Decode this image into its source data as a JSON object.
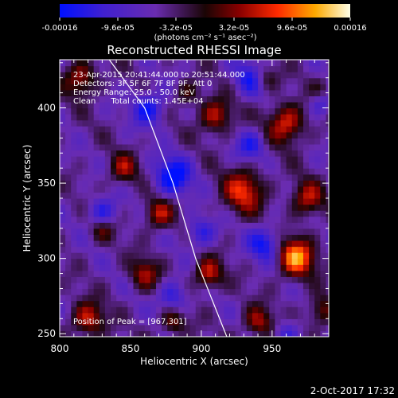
{
  "chart_data": {
    "type": "heatmap",
    "title": "Reconstructed RHESSI Image",
    "xlabel": "Heliocentric X (arcsec)",
    "ylabel": "Heliocentric Y (arcsec)",
    "xlim": [
      800,
      990
    ],
    "ylim": [
      248,
      432
    ],
    "x_ticks": [
      800,
      850,
      900,
      950
    ],
    "y_ticks": [
      250,
      300,
      350,
      400
    ],
    "colorbar": {
      "min": -0.00016,
      "max": 0.00016,
      "tick_labels": [
        "-0.00016",
        "-9.6e-05",
        "-3.2e-05",
        "3.2e-05",
        "9.6e-05",
        "0.00016"
      ],
      "tick_values": [
        -0.00016,
        -9.6e-05,
        -3.2e-05,
        3.2e-05,
        9.6e-05,
        0.00016
      ],
      "unit_label": "(photons cm⁻² s⁻¹ asec⁻²)"
    },
    "annotations": {
      "time_range": "23-Apr-2015 20:41:44.000 to 20:51:44.000",
      "detectors": "Detectors: 3F 5F 6F 7F 8F 9F, Att 0",
      "energy_range": "Energy Range: 25.0 - 50.0 keV",
      "clean_counts": "Clean      Total counts: 1.45E+04",
      "peak_position": "Position of Peak = [967,301]"
    },
    "peak": [
      967,
      301
    ],
    "limb_curve": [
      [
        835,
        432
      ],
      [
        860,
        400
      ],
      [
        880,
        350
      ],
      [
        896,
        300
      ],
      [
        918,
        248
      ]
    ],
    "hotspots": [
      {
        "x": 967,
        "y": 301,
        "amp": 0.00016,
        "w": 9
      },
      {
        "x": 960,
        "y": 390,
        "amp": 0.00012,
        "w": 9
      },
      {
        "x": 930,
        "y": 345,
        "amp": 0.00012,
        "w": 10
      },
      {
        "x": 910,
        "y": 395,
        "amp": 0.000105,
        "w": 8
      },
      {
        "x": 905,
        "y": 290,
        "amp": 0.00011,
        "w": 7
      },
      {
        "x": 975,
        "y": 340,
        "amp": 0.0001,
        "w": 8
      },
      {
        "x": 870,
        "y": 330,
        "amp": 0.0001,
        "w": 7
      },
      {
        "x": 860,
        "y": 290,
        "amp": 9e-05,
        "w": 7
      },
      {
        "x": 815,
        "y": 420,
        "amp": 0.0001,
        "w": 8
      },
      {
        "x": 820,
        "y": 260,
        "amp": 0.00011,
        "w": 8
      },
      {
        "x": 845,
        "y": 360,
        "amp": 8.5e-05,
        "w": 7
      },
      {
        "x": 940,
        "y": 258,
        "amp": 9.5e-05,
        "w": 7
      },
      {
        "x": 985,
        "y": 265,
        "amp": 8e-05,
        "w": 7
      },
      {
        "x": 880,
        "y": 258,
        "amp": 8e-05,
        "w": 6
      },
      {
        "x": 985,
        "y": 410,
        "amp": 7e-05,
        "w": 6
      },
      {
        "x": 830,
        "y": 320,
        "amp": 7e-05,
        "w": 6
      },
      {
        "x": 945,
        "y": 420,
        "amp": 7e-05,
        "w": 6
      },
      {
        "x": 890,
        "y": 410,
        "amp": 6e-05,
        "w": 6
      }
    ],
    "coldspots": [
      {
        "x": 880,
        "y": 355,
        "amp": -0.00012,
        "w": 9
      },
      {
        "x": 863,
        "y": 400,
        "amp": -0.0001,
        "w": 8
      },
      {
        "x": 935,
        "y": 420,
        "amp": -9e-05,
        "w": 8
      },
      {
        "x": 830,
        "y": 330,
        "amp": -9e-05,
        "w": 7
      },
      {
        "x": 900,
        "y": 318,
        "amp": -8e-05,
        "w": 7
      },
      {
        "x": 945,
        "y": 310,
        "amp": -0.0001,
        "w": 8
      },
      {
        "x": 985,
        "y": 405,
        "amp": -0.0001,
        "w": 6
      },
      {
        "x": 880,
        "y": 275,
        "amp": -8e-05,
        "w": 7
      },
      {
        "x": 935,
        "y": 375,
        "amp": -8e-05,
        "w": 7
      },
      {
        "x": 960,
        "y": 250,
        "amp": -7e-05,
        "w": 6
      }
    ]
  },
  "footer": {
    "timestamp": "2-Oct-2017 17:32"
  }
}
